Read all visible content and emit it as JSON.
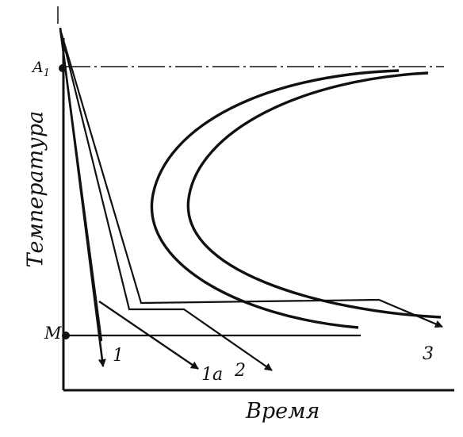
{
  "axes": {
    "y_label": "Температура",
    "x_label": "Время"
  },
  "levels": {
    "a1": "A",
    "a1_sub": "1",
    "m": "M"
  },
  "curves": {
    "c1": "1",
    "c1a": "1a",
    "c2": "2",
    "c3": "3"
  },
  "style": {
    "ink": "#111111",
    "background": "#ffffff"
  }
}
